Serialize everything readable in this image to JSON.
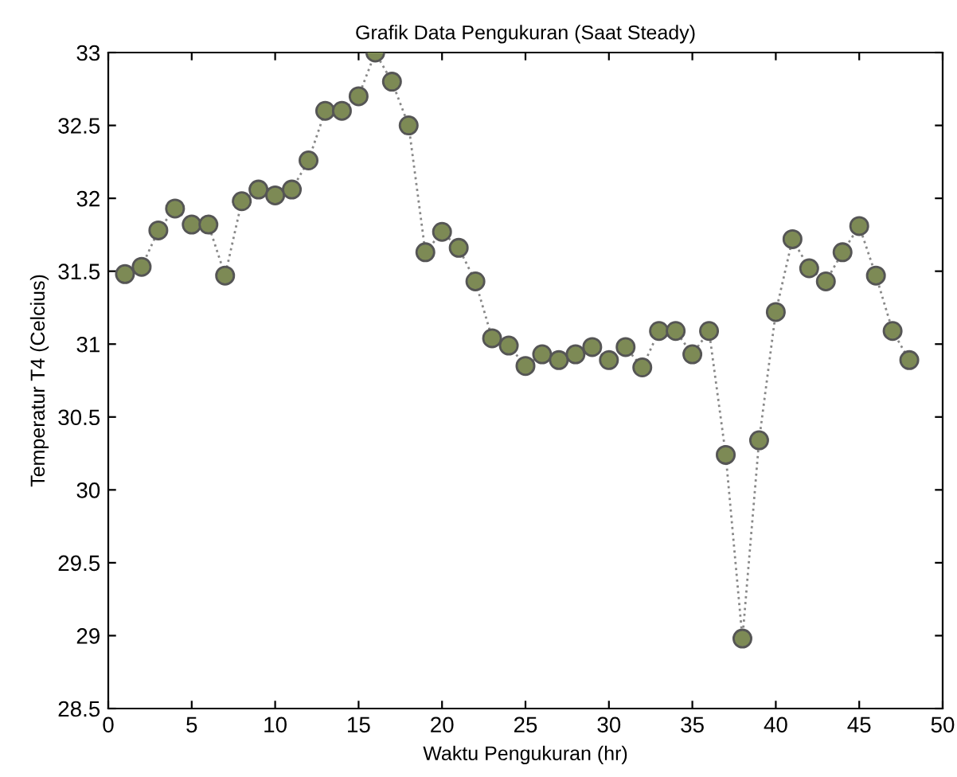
{
  "chart_data": {
    "type": "line",
    "title": "Grafik Data Pengukuran (Saat Steady)",
    "xlabel": "Waktu Pengukuran (hr)",
    "ylabel": "Temperatur T4 (Celcius)",
    "x": [
      1,
      2,
      3,
      4,
      5,
      6,
      7,
      8,
      9,
      10,
      11,
      12,
      13,
      14,
      15,
      16,
      17,
      18,
      19,
      20,
      21,
      22,
      23,
      24,
      25,
      26,
      27,
      28,
      29,
      30,
      31,
      32,
      33,
      34,
      35,
      36,
      37,
      38,
      39,
      40,
      41,
      42,
      43,
      44,
      45,
      46,
      47,
      48
    ],
    "series": [
      {
        "color": "#7d8a55",
        "values": [
          31.48,
          31.53,
          31.78,
          31.93,
          31.82,
          31.82,
          31.47,
          31.98,
          32.06,
          32.02,
          32.06,
          32.26,
          32.6,
          32.6,
          32.7,
          33.0,
          32.8,
          32.5,
          31.63,
          31.77,
          31.66,
          31.43,
          31.04,
          30.99,
          30.85,
          30.93,
          30.89,
          30.93,
          30.98,
          30.89,
          30.98,
          30.84,
          31.09,
          31.09,
          30.93,
          31.09,
          30.24,
          28.98,
          30.34,
          31.22,
          31.72,
          31.52,
          31.43,
          31.63,
          31.81,
          31.47,
          31.09,
          30.89
        ]
      }
    ],
    "xlim": [
      0,
      50
    ],
    "xticks": [
      0,
      5,
      10,
      15,
      20,
      25,
      30,
      35,
      40,
      45,
      50
    ],
    "ylim": [
      28.5,
      33
    ],
    "yticks": [
      28.5,
      29,
      29.5,
      30,
      30.5,
      31,
      31.5,
      32,
      32.5,
      33
    ],
    "marker": "circle",
    "line_style": "dotted",
    "grid": false,
    "legend": false
  }
}
